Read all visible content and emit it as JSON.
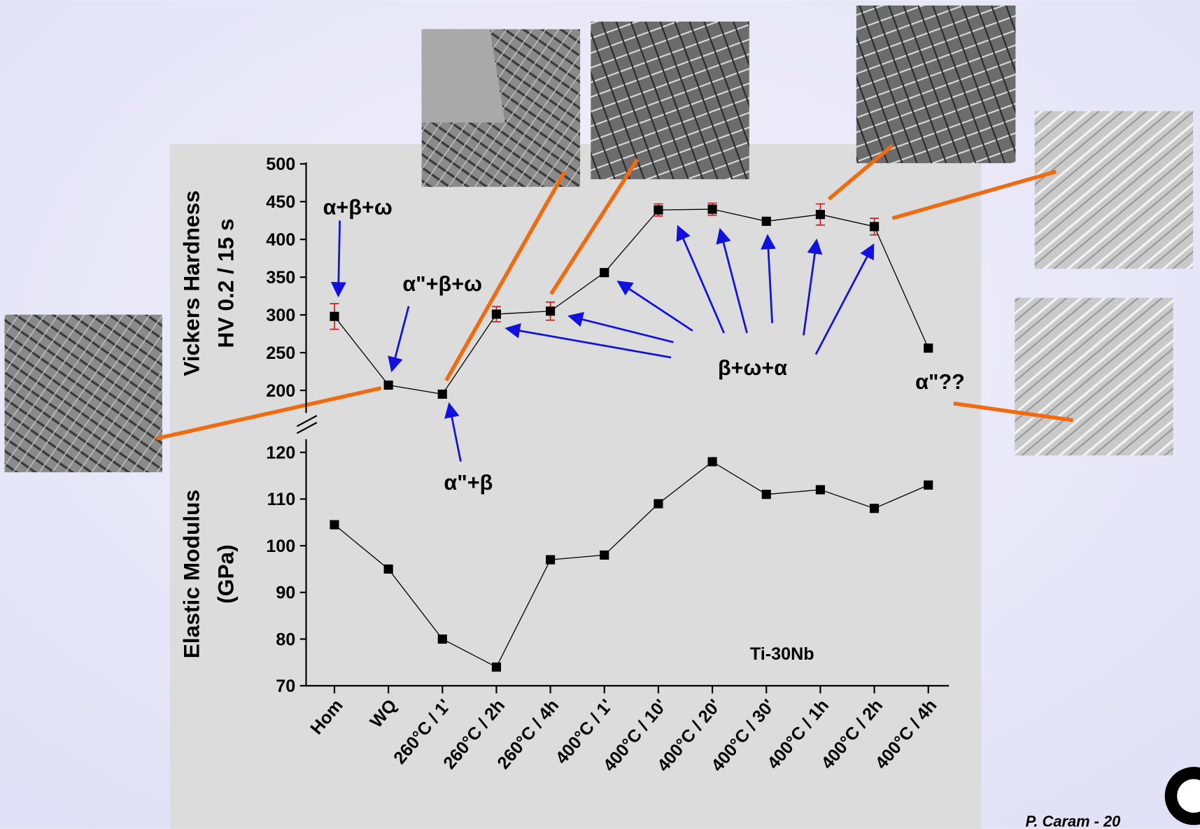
{
  "chart_data": {
    "type": "line",
    "categories": [
      "Hom",
      "WQ",
      "260°C / 1'",
      "260°C / 2h",
      "260°C / 4h",
      "400°C / 1'",
      "400°C / 10'",
      "400°C / 20'",
      "400°C / 30'",
      "400°C / 1h",
      "400°C / 2h",
      "400°C / 4h"
    ],
    "label": "Ti-30Nb",
    "color": "#000000",
    "error_color": "#e01010",
    "panels": [
      {
        "ylabel": [
          "Vickers Hardness",
          "HV 0.2 / 15 s"
        ],
        "ylim": [
          170,
          500
        ],
        "yticks": [
          200,
          250,
          300,
          350,
          400,
          450,
          500
        ],
        "values": [
          298,
          207,
          195,
          301,
          305,
          356,
          439,
          440,
          424,
          433,
          417,
          256
        ],
        "errors": [
          17,
          3,
          3,
          10,
          12,
          5,
          8,
          8,
          5,
          14,
          11,
          3
        ]
      },
      {
        "ylabel": [
          "Elastic Modulus",
          "(GPa)"
        ],
        "ylim": [
          70,
          122.5
        ],
        "yticks": [
          70,
          80,
          90,
          100,
          110,
          120
        ],
        "values": [
          104.5,
          95,
          80,
          74,
          97,
          98,
          109,
          118,
          111,
          112,
          108,
          113
        ]
      }
    ],
    "annotations": [
      "α+β+ω",
      "α\"+β+ω",
      "α\"+β",
      "β+ω+α",
      "α\"??"
    ]
  },
  "footer": "P. Caram - 20"
}
